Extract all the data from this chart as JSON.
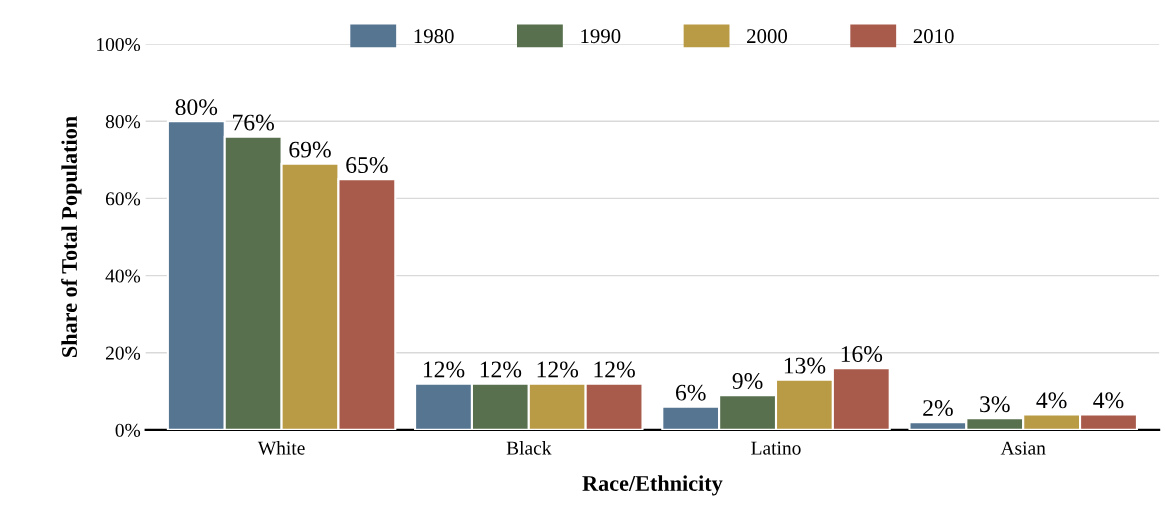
{
  "chart_data": {
    "type": "bar",
    "xlabel": "Race/Ethnicity",
    "ylabel": "Share of Total Population",
    "categories": [
      "White",
      "Black",
      "Latino",
      "Asian"
    ],
    "series": [
      {
        "name": "1980",
        "color": "#557591",
        "values": [
          80,
          12,
          6,
          2
        ],
        "value_labels": [
          "80%",
          "12%",
          "6%",
          "2%"
        ]
      },
      {
        "name": "1990",
        "color": "#58704d",
        "values": [
          76,
          12,
          9,
          3
        ],
        "value_labels": [
          "76%",
          "12%",
          "9%",
          "3%"
        ]
      },
      {
        "name": "2000",
        "color": "#b99a45",
        "values": [
          69,
          12,
          13,
          4
        ],
        "value_labels": [
          "69%",
          "12%",
          "13%",
          "4%"
        ]
      },
      {
        "name": "2010",
        "color": "#a95b4b",
        "values": [
          65,
          12,
          16,
          4
        ],
        "value_labels": [
          "65%",
          "12%",
          "16%",
          "4%"
        ]
      }
    ],
    "ylim": [
      0,
      100
    ],
    "yticks": [
      {
        "value": 0,
        "label": "0%"
      },
      {
        "value": 20,
        "label": "20%"
      },
      {
        "value": 40,
        "label": "40%"
      },
      {
        "value": 60,
        "label": "60%"
      },
      {
        "value": 80,
        "label": "80%"
      },
      {
        "value": 100,
        "label": "100%"
      }
    ],
    "grid": "y",
    "legend": "top"
  }
}
